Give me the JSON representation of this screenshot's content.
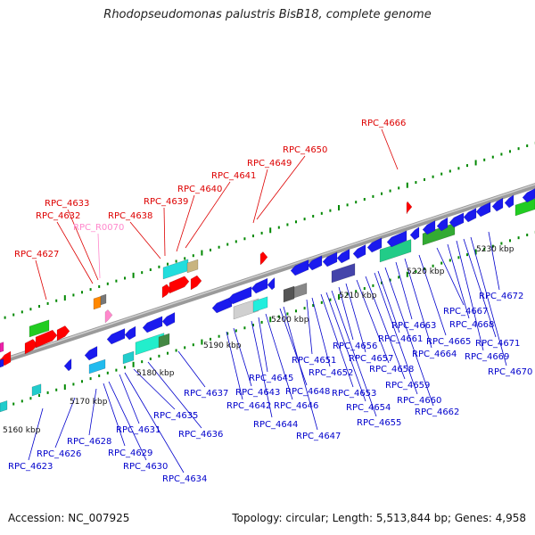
{
  "title": "Rhodopseudomonas palustris BisB18, complete genome",
  "accession": "Accession: NC_007925",
  "summary": "Topology: circular; Length: 5,513,844 bp; Genes: 4,958",
  "colors": {
    "label_top": "#dd0000",
    "label_bottom": "#0000cc",
    "label_rna": "#ff88cc",
    "backbone": "#888888",
    "ticks": "#007700"
  },
  "scale_labels": [
    "5160 kbp",
    "5170 kbp",
    "5180 kbp",
    "5190 kbp",
    "5200 kbp",
    "5210 kbp",
    "5220 kbp",
    "5230 kbp"
  ],
  "top_labels": [
    {
      "text": "RPC_4627",
      "kind": "gene"
    },
    {
      "text": "RPC_4632",
      "kind": "gene"
    },
    {
      "text": "RPC_4633",
      "kind": "gene"
    },
    {
      "text": "RPC_R0070",
      "kind": "rna"
    },
    {
      "text": "RPC_4638",
      "kind": "gene"
    },
    {
      "text": "RPC_4639",
      "kind": "gene"
    },
    {
      "text": "RPC_4640",
      "kind": "gene"
    },
    {
      "text": "RPC_4641",
      "kind": "gene"
    },
    {
      "text": "RPC_4649",
      "kind": "gene"
    },
    {
      "text": "RPC_4650",
      "kind": "gene"
    },
    {
      "text": "RPC_4666",
      "kind": "gene"
    }
  ],
  "bottom_labels": [
    "RPC_4623",
    "RPC_4626",
    "RPC_4628",
    "RPC_4629",
    "RPC_4630",
    "RPC_4631",
    "RPC_4634",
    "RPC_4635",
    "RPC_4636",
    "RPC_4637",
    "RPC_4642",
    "RPC_4643",
    "RPC_4644",
    "RPC_4645",
    "RPC_4646",
    "RPC_4647",
    "RPC_4648",
    "RPC_4651",
    "RPC_4652",
    "RPC_4653",
    "RPC_4654",
    "RPC_4655",
    "RPC_4656",
    "RPC_4657",
    "RPC_4658",
    "RPC_4659",
    "RPC_4660",
    "RPC_4661",
    "RPC_4662",
    "RPC_4663",
    "RPC_4664",
    "RPC_4665",
    "RPC_4667",
    "RPC_4668",
    "RPC_4669",
    "RPC_4670",
    "RPC_4671",
    "RPC_4672"
  ]
}
